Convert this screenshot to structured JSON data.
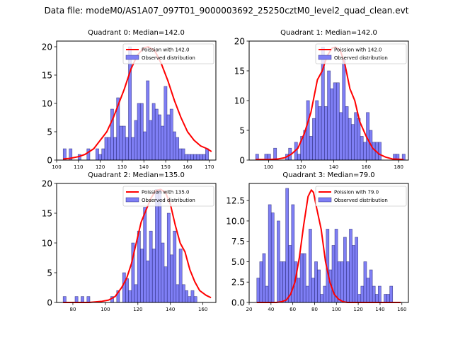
{
  "figure": {
    "suptitle": "Data file: modeM0/AS1A07_097T01_9000003692_25250cztM0_level2_quad_clean.evt"
  },
  "colors": {
    "bar_fill": "#7f7ff5",
    "bar_edge": "#1a1a66",
    "line": "#ff0000"
  },
  "chart_data": [
    {
      "type": "bar",
      "title": "Quadrant 0: Median=142.0",
      "xlabel": "",
      "ylabel": "",
      "xlim": [
        100,
        173
      ],
      "ylim": [
        0,
        21
      ],
      "xticks": [
        100,
        110,
        120,
        130,
        140,
        150,
        160,
        170
      ],
      "yticks": [
        0,
        5,
        10,
        15,
        20
      ],
      "ytick_labels": [
        "0",
        "5",
        "10",
        "15",
        "20"
      ],
      "legend": {
        "position": "top-right",
        "entries": [
          "Poission with 142.0",
          "Observed distribution"
        ]
      },
      "bin_start": 103,
      "bin_width": 1.36,
      "values": [
        2,
        0,
        2,
        0,
        0,
        1,
        0,
        0,
        2,
        0,
        0,
        2,
        1,
        2,
        4,
        4,
        9,
        4,
        11,
        6,
        6,
        4,
        20,
        4,
        7,
        10,
        10,
        5,
        14,
        7,
        10,
        9,
        8,
        6,
        13,
        8,
        9,
        5,
        4,
        2,
        2,
        1,
        1,
        1,
        1,
        1,
        1,
        1,
        2
      ],
      "poisson_curve": {
        "name": "Poission with 142.0",
        "x": [
          103,
          106,
          110,
          113,
          117,
          120,
          123,
          126,
          128,
          131,
          134,
          137,
          140,
          142,
          145,
          148,
          151,
          154,
          157,
          160,
          163,
          166,
          169,
          171
        ],
        "y": [
          0.2,
          0.3,
          0.6,
          1.0,
          2.0,
          3.5,
          5.0,
          7.5,
          9.5,
          12.5,
          16,
          18.5,
          19.8,
          20,
          19.3,
          17,
          14,
          10.5,
          7.5,
          5,
          3.5,
          2.5,
          2,
          1.5
        ]
      }
    },
    {
      "type": "bar",
      "title": "Quadrant 1: Median=142.0",
      "xlabel": "",
      "ylabel": "",
      "xlim": [
        88,
        186
      ],
      "ylim": [
        0,
        20
      ],
      "xticks": [
        100,
        120,
        140,
        160,
        180
      ],
      "yticks": [
        0,
        5,
        10,
        15,
        20
      ],
      "ytick_labels": [
        "0",
        "5",
        "10",
        "15",
        "20"
      ],
      "legend": {
        "position": "top-right",
        "entries": [
          "Poission with 142.0",
          "Observed distribution"
        ]
      },
      "bin_start": 92,
      "bin_width": 1.84,
      "values": [
        1,
        0,
        0,
        1,
        1,
        0,
        2,
        0,
        0,
        0,
        1,
        2,
        0,
        3,
        1,
        4,
        5,
        10,
        4,
        7,
        10,
        9,
        19,
        9,
        15,
        12,
        13,
        13,
        8,
        17,
        9,
        7,
        6,
        8,
        7,
        4,
        3,
        8,
        5,
        3,
        3,
        3,
        0,
        0,
        0,
        0,
        1,
        1,
        0,
        1
      ],
      "poisson_curve": {
        "name": "Poission with 142.0",
        "x": [
          92,
          100,
          106,
          110,
          114,
          118,
          122,
          126,
          130,
          133,
          136,
          139,
          141,
          144,
          147,
          150,
          153,
          156,
          160,
          164,
          168,
          172,
          176,
          183
        ],
        "y": [
          0.1,
          0.1,
          0.2,
          0.4,
          1.0,
          2.0,
          4.5,
          8.0,
          13.5,
          15,
          17.5,
          18.8,
          19,
          18.5,
          16,
          12,
          10,
          6.5,
          4,
          2,
          1,
          0.5,
          0.2,
          0.1
        ]
      }
    },
    {
      "type": "bar",
      "title": "Quadrant 2: Median=135.0",
      "xlabel": "",
      "ylabel": "",
      "xlim": [
        70,
        168
      ],
      "ylim": [
        0,
        20
      ],
      "xticks": [
        80,
        100,
        120,
        140,
        160
      ],
      "yticks": [
        0,
        5,
        10,
        15,
        20
      ],
      "ytick_labels": [
        "0",
        "5",
        "10",
        "15",
        "20"
      ],
      "legend": {
        "position": "top-right",
        "entries": [
          "Poission with 135.0",
          "Observed distribution"
        ]
      },
      "bin_start": 74,
      "bin_width": 1.83,
      "values": [
        1,
        0,
        0,
        0,
        1,
        0,
        1,
        0,
        1,
        0,
        0,
        0,
        0,
        0,
        0,
        0,
        1,
        0,
        2,
        0,
        5,
        4,
        2,
        10,
        3,
        12,
        9,
        16,
        7,
        12,
        9,
        19,
        19,
        10,
        6,
        15,
        8,
        12,
        3,
        9,
        3,
        2,
        1,
        2,
        1
      ],
      "poisson_curve": {
        "name": "Poission with 135.0",
        "x": [
          74,
          90,
          98,
          102,
          106,
          110,
          113,
          116,
          119,
          122,
          125,
          128,
          131,
          134,
          137,
          140,
          143,
          146,
          149,
          152,
          155,
          158,
          162,
          165
        ],
        "y": [
          0,
          0,
          0.2,
          0.4,
          1.0,
          2.5,
          4.0,
          6.5,
          10,
          13.5,
          15.5,
          17.5,
          18.8,
          19,
          18.5,
          16.5,
          13,
          10,
          8.5,
          5.5,
          3.5,
          2,
          1.2,
          0.8
        ]
      }
    },
    {
      "type": "bar",
      "title": "Quadrant 3: Median=79.0",
      "xlabel": "",
      "ylabel": "",
      "xlim": [
        20,
        166
      ],
      "ylim": [
        0,
        14.6
      ],
      "xticks": [
        20,
        40,
        60,
        80,
        100,
        120,
        140,
        160
      ],
      "yticks": [
        0,
        2.5,
        5,
        7.5,
        10,
        12.5
      ],
      "ytick_labels": [
        "0.0",
        "2.5",
        "5.0",
        "7.5",
        "10.0",
        "12.5"
      ],
      "legend": {
        "position": "top-right",
        "entries": [
          "Poission with 79.0",
          "Observed distribution"
        ]
      },
      "bin_start": 27,
      "bin_width": 2.65,
      "values": [
        3,
        5,
        6,
        2,
        12,
        11,
        0,
        10,
        5,
        5,
        14,
        7,
        12,
        5,
        3,
        6,
        6,
        2,
        9,
        3,
        5,
        4,
        1,
        2,
        9,
        4,
        7,
        9,
        5,
        5,
        8,
        5,
        9,
        7,
        8,
        1,
        2,
        5,
        3,
        4,
        2,
        1,
        2,
        0,
        1,
        1,
        2
      ],
      "poisson_curve": {
        "name": "Poission with 79.0",
        "x": [
          27,
          45,
          50,
          54,
          58,
          62,
          66,
          70,
          74,
          77,
          79,
          82,
          86,
          90,
          94,
          98,
          102,
          106,
          110,
          120,
          140,
          159
        ],
        "y": [
          0,
          0,
          0.1,
          0.3,
          1.0,
          2.5,
          5.5,
          9.5,
          13.0,
          13.8,
          13.5,
          11.5,
          9.0,
          5.0,
          2.5,
          1.0,
          0.4,
          0.1,
          0,
          0,
          0,
          0
        ]
      }
    }
  ]
}
